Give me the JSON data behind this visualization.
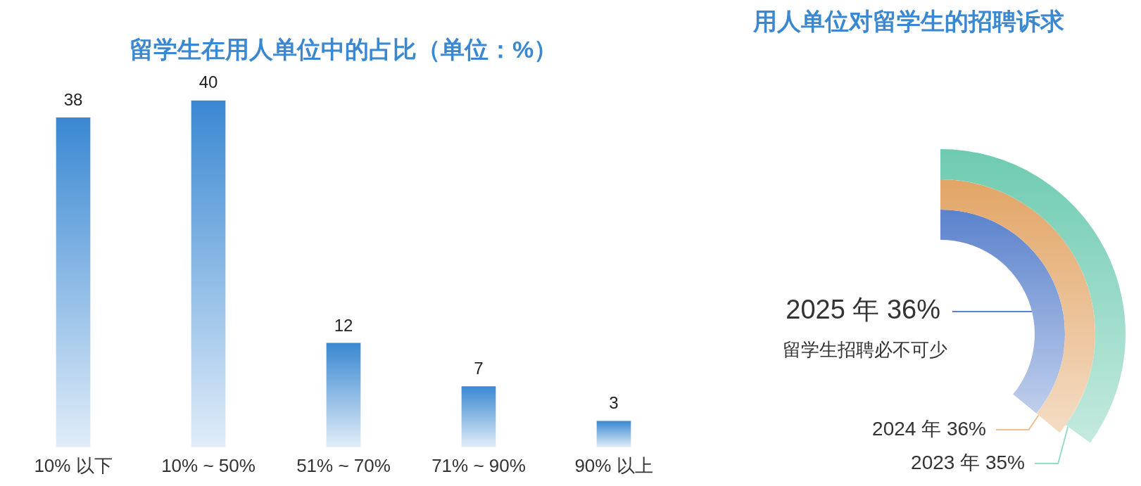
{
  "chart_data": [
    {
      "type": "bar",
      "title": "留学生在用人单位中的占比（单位：%）",
      "categories": [
        "10% 以下",
        "10% ~ 50%",
        "51% ~ 70%",
        "71% ~ 90%",
        "90% 以上"
      ],
      "values": [
        38,
        40,
        12,
        7,
        3
      ],
      "color": "#3a88d2",
      "data_labels": true
    },
    {
      "type": "other",
      "title": "用人单位对留学生的招聘诉求",
      "categories": [
        "2025 年",
        "2024 年",
        "2023 年"
      ],
      "values": [
        36,
        36,
        35
      ],
      "value_labels": [
        "36%",
        "36%",
        "35%"
      ],
      "colors": [
        "#5b82cc",
        "#e2a566",
        "#6dcbb0"
      ],
      "annotations": [
        "留学生招聘必不可少"
      ]
    }
  ]
}
